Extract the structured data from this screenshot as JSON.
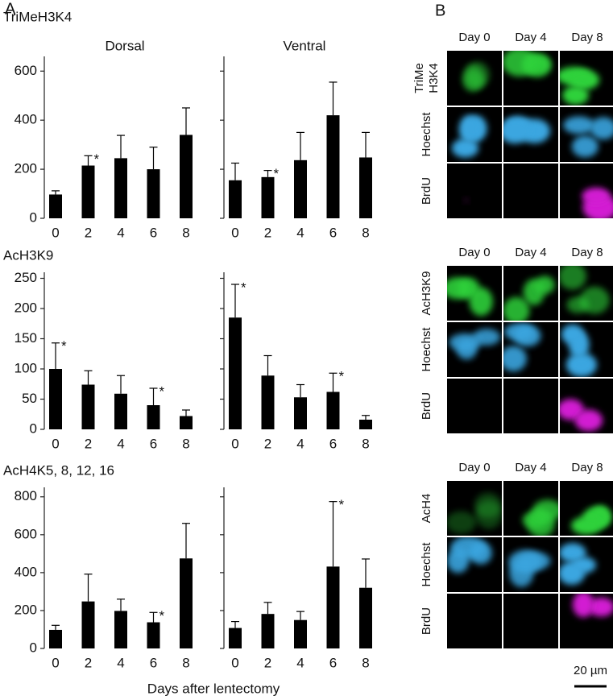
{
  "figure": {
    "panel_a": "A",
    "panel_b": "B",
    "x_label": "Days after lentectomy"
  },
  "chart_data": [
    {
      "type": "bar",
      "row_label": "TriMeH3K4",
      "title": "Dorsal",
      "categories": [
        "0",
        "2",
        "4",
        "6",
        "8"
      ],
      "values": [
        97,
        215,
        245,
        200,
        340
      ],
      "errors": [
        15,
        40,
        93,
        90,
        110
      ],
      "significance": [
        null,
        "*",
        null,
        null,
        null
      ],
      "color": "#000000",
      "ylim": [
        0,
        660
      ],
      "yticks": [
        0,
        200,
        400,
        600
      ],
      "ytick_labels": true
    },
    {
      "type": "bar",
      "title": "Ventral",
      "categories": [
        "0",
        "2",
        "4",
        "6",
        "8"
      ],
      "values": [
        155,
        168,
        237,
        420,
        248
      ],
      "errors": [
        70,
        27,
        113,
        135,
        102
      ],
      "significance": [
        null,
        "*",
        null,
        null,
        null
      ],
      "color": "#000000",
      "ylim": [
        0,
        660
      ],
      "yticks": [
        0,
        200,
        400,
        600
      ],
      "ytick_labels": false
    },
    {
      "type": "bar",
      "row_label": "AcH3K9",
      "categories": [
        "0",
        "2",
        "4",
        "6",
        "8"
      ],
      "values": [
        100,
        74,
        59,
        40,
        22
      ],
      "errors": [
        43,
        23,
        30,
        28,
        10
      ],
      "significance": [
        "*",
        null,
        null,
        "*",
        null
      ],
      "color": "#000000",
      "ylim": [
        0,
        260
      ],
      "yticks": [
        0,
        50,
        100,
        150,
        200,
        250
      ],
      "ytick_labels": true
    },
    {
      "type": "bar",
      "categories": [
        "0",
        "2",
        "4",
        "6",
        "8"
      ],
      "values": [
        185,
        89,
        53,
        62,
        16
      ],
      "errors": [
        55,
        33,
        21,
        31,
        7
      ],
      "significance": [
        "*",
        null,
        null,
        "*",
        null
      ],
      "color": "#000000",
      "ylim": [
        0,
        260
      ],
      "yticks": [
        0,
        50,
        100,
        150,
        200,
        250
      ],
      "ytick_labels": false
    },
    {
      "type": "bar",
      "row_label": "AcH4K5, 8, 12, 16",
      "categories": [
        "0",
        "2",
        "4",
        "6",
        "8"
      ],
      "values": [
        98,
        248,
        198,
        138,
        475
      ],
      "errors": [
        24,
        144,
        62,
        52,
        185
      ],
      "significance": [
        null,
        null,
        null,
        "*",
        null
      ],
      "color": "#000000",
      "ylim": [
        0,
        850
      ],
      "yticks": [
        0,
        200,
        400,
        600,
        800
      ],
      "ytick_labels": true
    },
    {
      "type": "bar",
      "categories": [
        "0",
        "2",
        "4",
        "6",
        "8"
      ],
      "values": [
        108,
        182,
        150,
        432,
        320
      ],
      "errors": [
        34,
        61,
        45,
        343,
        152
      ],
      "significance": [
        null,
        null,
        null,
        "*",
        null
      ],
      "color": "#000000",
      "ylim": [
        0,
        850
      ],
      "yticks": [
        0,
        200,
        400,
        600,
        800
      ],
      "ytick_labels": false
    }
  ],
  "microscopy": {
    "groups": [
      {
        "days": [
          "Day 0",
          "Day 4",
          "Day 8"
        ],
        "rows": [
          [
            "TriMe",
            "H3K4"
          ],
          [
            "Hoechst"
          ],
          [
            "BrdU"
          ]
        ]
      },
      {
        "days": [
          "Day 0",
          "Day 4",
          "Day 8"
        ],
        "rows": [
          [
            "AcH3K9"
          ],
          [
            "Hoechst"
          ],
          [
            "BrdU"
          ]
        ]
      },
      {
        "days": [
          "Day 0",
          "Day 4",
          "Day 8"
        ],
        "rows": [
          [
            "AcH4"
          ],
          [
            "Hoechst"
          ],
          [
            "BrdU"
          ]
        ]
      }
    ],
    "scale_bar": "20 µm"
  }
}
